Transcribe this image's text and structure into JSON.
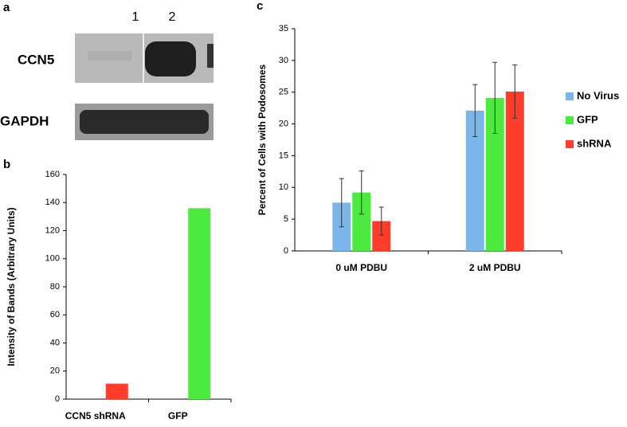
{
  "panel_labels": [
    "a",
    "b",
    "c"
  ],
  "blot": {
    "lanes": [
      "1",
      "2"
    ],
    "rows": [
      "CCN5",
      "GAPDH"
    ]
  },
  "chart_data": [
    {
      "type": "bar",
      "y_label": "Intensity of Bands (Arbitrary Units)",
      "categories": [
        "CCN5 shRNA",
        "GFP"
      ],
      "values": [
        11,
        136
      ],
      "colors": [
        "#ff3b2a",
        "#4cea3e"
      ],
      "ylim": [
        0,
        160
      ],
      "yticks": [
        0,
        20,
        40,
        60,
        80,
        100,
        120,
        140,
        160
      ]
    },
    {
      "type": "grouped-bar",
      "y_label": "Percent of Cells with Podosomes",
      "categories": [
        "0 uM PDBU",
        "2 uM PDBU"
      ],
      "series": [
        {
          "name": "No Virus",
          "color": "#7ab6ea",
          "values": [
            7.6,
            22.1
          ],
          "errors": [
            3.8,
            4.1
          ]
        },
        {
          "name": "GFP",
          "color": "#4cea3e",
          "values": [
            9.2,
            24.1
          ],
          "errors": [
            3.4,
            5.6
          ]
        },
        {
          "name": "shRNA",
          "color": "#ff3b2a",
          "values": [
            4.7,
            25.1
          ],
          "errors": [
            2.2,
            4.2
          ]
        }
      ],
      "ylim": [
        0,
        35
      ],
      "yticks": [
        0,
        5,
        10,
        15,
        20,
        25,
        30,
        35
      ],
      "legend": "right"
    }
  ]
}
